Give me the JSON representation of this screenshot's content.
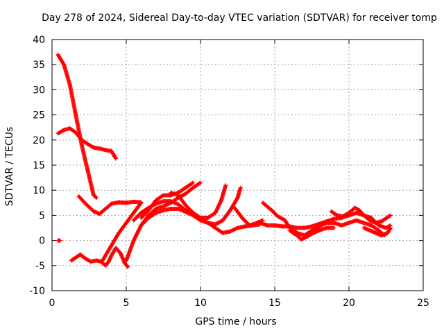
{
  "chart_data": {
    "type": "scatter",
    "title": "Day 278 of 2024, Sidereal Day-to-day VTEC variation (SDTVAR) for receiver tomp",
    "xlabel": "GPS time / hours",
    "ylabel": "SDTVAR / TECUs",
    "xlim": [
      0,
      25
    ],
    "ylim": [
      -10,
      40
    ],
    "xticks": [
      0,
      5,
      10,
      15,
      20,
      25
    ],
    "yticks": [
      -10,
      -5,
      0,
      5,
      10,
      15,
      20,
      25,
      30,
      35,
      40
    ],
    "grid": true,
    "marker": "+",
    "color": "#ff0000",
    "series": [
      {
        "name": "s1",
        "points": [
          [
            0.4,
            37
          ],
          [
            0.8,
            35
          ],
          [
            1.2,
            31
          ],
          [
            1.6,
            25
          ],
          [
            2.0,
            19
          ],
          [
            2.4,
            14
          ],
          [
            2.8,
            9
          ],
          [
            3.0,
            8.5
          ]
        ]
      },
      {
        "name": "s2",
        "points": [
          [
            0.4,
            21.3
          ],
          [
            0.8,
            22
          ],
          [
            1.2,
            22.3
          ],
          [
            1.6,
            21.5
          ],
          [
            2.0,
            20
          ],
          [
            2.4,
            19.2
          ],
          [
            2.8,
            18.5
          ],
          [
            3.2,
            18.3
          ],
          [
            3.6,
            18
          ],
          [
            4.0,
            17.8
          ],
          [
            4.3,
            16.3
          ]
        ]
      },
      {
        "name": "s3",
        "points": [
          [
            0.4,
            0
          ],
          [
            0.55,
            0
          ]
        ]
      },
      {
        "name": "s4",
        "points": [
          [
            1.3,
            -4
          ],
          [
            1.6,
            -3.4
          ],
          [
            1.9,
            -2.8
          ],
          [
            2.2,
            -3.5
          ],
          [
            2.6,
            -4.2
          ],
          [
            3.0,
            -4
          ],
          [
            3.3,
            -4.2
          ],
          [
            3.6,
            -5
          ],
          [
            3.8,
            -4.3
          ],
          [
            4.0,
            -3
          ],
          [
            4.3,
            -1.5
          ],
          [
            4.6,
            -2.5
          ],
          [
            4.9,
            -4.5
          ],
          [
            5.1,
            -5.3
          ]
        ]
      },
      {
        "name": "s5",
        "points": [
          [
            1.8,
            8.8
          ],
          [
            2.3,
            7.2
          ],
          [
            2.8,
            5.8
          ],
          [
            3.2,
            5.3
          ],
          [
            3.6,
            6.3
          ],
          [
            4.0,
            7.3
          ],
          [
            4.5,
            7.6
          ],
          [
            5.0,
            7.5
          ],
          [
            5.5,
            7.7
          ],
          [
            6.0,
            7.6
          ]
        ]
      },
      {
        "name": "s6",
        "points": [
          [
            3.4,
            -4
          ],
          [
            4.0,
            -1
          ],
          [
            4.5,
            1.5
          ],
          [
            5.0,
            3.5
          ],
          [
            5.5,
            5.5
          ],
          [
            6.0,
            7.5
          ]
        ]
      },
      {
        "name": "s7",
        "points": [
          [
            5.0,
            -4
          ],
          [
            5.5,
            0
          ],
          [
            6.0,
            3
          ],
          [
            6.5,
            4.5
          ],
          [
            7.0,
            5.5
          ],
          [
            7.5,
            6
          ],
          [
            8.0,
            6.3
          ],
          [
            8.5,
            6.3
          ],
          [
            9.0,
            5.7
          ],
          [
            9.5,
            5
          ],
          [
            10.0,
            4
          ],
          [
            10.5,
            3.5
          ],
          [
            11.0,
            3.2
          ],
          [
            11.5,
            4
          ],
          [
            12.0,
            6
          ],
          [
            12.5,
            8.5
          ],
          [
            12.7,
            10.5
          ]
        ]
      },
      {
        "name": "s8",
        "points": [
          [
            5.5,
            4
          ],
          [
            6.0,
            5.5
          ],
          [
            6.5,
            6.5
          ],
          [
            7.0,
            7.3
          ],
          [
            7.5,
            7.8
          ],
          [
            8.0,
            7.8
          ],
          [
            8.5,
            7.2
          ],
          [
            9.0,
            6
          ],
          [
            9.5,
            5.2
          ],
          [
            10.0,
            4.5
          ],
          [
            10.5,
            4.5
          ],
          [
            11.0,
            5.5
          ],
          [
            11.4,
            8
          ],
          [
            11.7,
            11
          ]
        ]
      },
      {
        "name": "s9",
        "points": [
          [
            6.0,
            4.5
          ],
          [
            6.5,
            6
          ],
          [
            7.0,
            8
          ],
          [
            7.5,
            9
          ],
          [
            8.0,
            9
          ],
          [
            8.5,
            9.5
          ],
          [
            9.0,
            10.5
          ],
          [
            9.5,
            11.5
          ]
        ]
      },
      {
        "name": "s10",
        "points": [
          [
            6.0,
            3
          ],
          [
            6.5,
            5
          ],
          [
            7.0,
            6.3
          ],
          [
            7.5,
            6.8
          ],
          [
            8.0,
            7.5
          ],
          [
            8.5,
            8.5
          ],
          [
            9.0,
            9.3
          ],
          [
            9.5,
            10.5
          ],
          [
            10.0,
            11.5
          ]
        ]
      },
      {
        "name": "s11",
        "points": [
          [
            8.0,
            9.5
          ],
          [
            8.5,
            9
          ],
          [
            9.0,
            7
          ],
          [
            9.5,
            5.5
          ],
          [
            10.0,
            4.5
          ],
          [
            10.5,
            3.5
          ],
          [
            11.0,
            2.5
          ],
          [
            11.5,
            1.5
          ],
          [
            12.0,
            1.8
          ],
          [
            12.5,
            2.5
          ],
          [
            13.0,
            2.8
          ],
          [
            13.5,
            3
          ],
          [
            14.0,
            3.2
          ]
        ]
      },
      {
        "name": "s12",
        "points": [
          [
            12.3,
            6.5
          ],
          [
            12.8,
            4.5
          ],
          [
            13.3,
            3
          ],
          [
            13.8,
            3.5
          ],
          [
            14.2,
            4
          ]
        ]
      },
      {
        "name": "s13",
        "points": [
          [
            14.2,
            7.5
          ],
          [
            14.8,
            6
          ],
          [
            15.2,
            4.8
          ],
          [
            15.7,
            4
          ],
          [
            16.0,
            2.5
          ],
          [
            16.5,
            1.5
          ],
          [
            17.0,
            1
          ],
          [
            17.5,
            2
          ],
          [
            18.0,
            2.8
          ],
          [
            18.5,
            3.5
          ],
          [
            19.0,
            3.5
          ],
          [
            19.5,
            3
          ],
          [
            20.0,
            3.5
          ],
          [
            20.5,
            4
          ],
          [
            21.0,
            3.5
          ],
          [
            21.5,
            3
          ],
          [
            22.0,
            2
          ],
          [
            22.4,
            1
          ]
        ]
      },
      {
        "name": "s14",
        "points": [
          [
            14.0,
            3.5
          ],
          [
            14.5,
            3
          ],
          [
            15.0,
            3
          ],
          [
            15.5,
            2.8
          ],
          [
            16.0,
            2.8
          ],
          [
            16.5,
            2.5
          ],
          [
            17.0,
            2.5
          ],
          [
            17.5,
            2.8
          ],
          [
            18.0,
            3.3
          ],
          [
            18.5,
            3.8
          ],
          [
            19.0,
            4.3
          ],
          [
            19.5,
            4.5
          ],
          [
            20.0,
            5
          ],
          [
            20.5,
            5.5
          ],
          [
            21.0,
            5
          ],
          [
            21.5,
            4.5
          ],
          [
            22.0,
            3
          ],
          [
            22.5,
            2.5
          ],
          [
            22.8,
            3
          ]
        ]
      },
      {
        "name": "s15",
        "points": [
          [
            16.0,
            2
          ],
          [
            16.5,
            1
          ],
          [
            16.8,
            0.2
          ],
          [
            17.2,
            0.8
          ],
          [
            17.6,
            1.5
          ],
          [
            18.0,
            2
          ],
          [
            18.5,
            2.5
          ],
          [
            19.0,
            2.5
          ]
        ]
      },
      {
        "name": "s16",
        "points": [
          [
            18.8,
            5.8
          ],
          [
            19.2,
            5
          ],
          [
            19.6,
            4.8
          ],
          [
            20.0,
            5.5
          ],
          [
            20.4,
            6.5
          ],
          [
            20.7,
            6
          ],
          [
            21.0,
            5
          ],
          [
            21.4,
            4
          ],
          [
            21.8,
            3.5
          ],
          [
            22.2,
            3.8
          ],
          [
            22.8,
            5
          ]
        ]
      },
      {
        "name": "s17",
        "points": [
          [
            21.0,
            2.5
          ],
          [
            21.4,
            2
          ],
          [
            21.8,
            1.5
          ],
          [
            22.2,
            1
          ],
          [
            22.6,
            1.5
          ],
          [
            22.8,
            2.5
          ]
        ]
      }
    ]
  }
}
